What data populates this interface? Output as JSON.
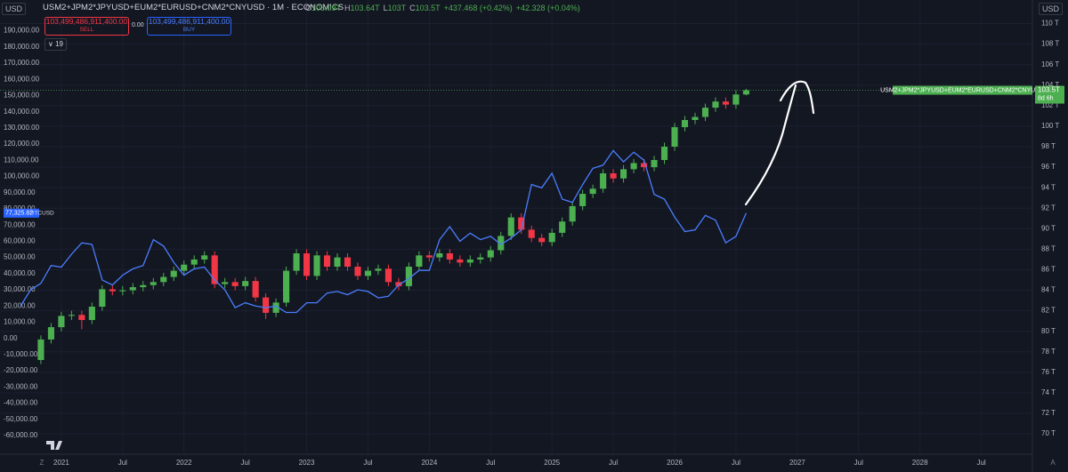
{
  "currency": "USD",
  "trade_panel": {
    "sell_price": "103,499,486,911,400.00",
    "sell": "SELL",
    "spread": "0.00",
    "buy_price": "103,499,486,911,400.00",
    "buy": "BUY",
    "indicator_count": "19"
  },
  "footer": {
    "left": "Z",
    "right": "A"
  },
  "chart_data": {
    "type": "candlestick",
    "title": "USM2+JPM2*JPYUSD+EUM2*EURUSD+CNM2*CNYUSD · 1M · ECONOMICS",
    "ohlc_legend": [
      {
        "key": "O",
        "label": "103.09T"
      },
      {
        "key": "H",
        "label": "103.64T"
      },
      {
        "key": "L",
        "label": "103T"
      },
      {
        "key": "C",
        "label": "103.5T"
      }
    ],
    "change": "+437.468 (+0.42%)",
    "change2": "+42.328 (+0.04%)",
    "xlim": [
      "2020-07",
      "2028-12"
    ],
    "xticks": [
      {
        "value": "2021-01",
        "label": "2021"
      },
      {
        "value": "2021-07",
        "label": "Jul"
      },
      {
        "value": "2022-01",
        "label": "2022"
      },
      {
        "value": "2022-07",
        "label": "Jul"
      },
      {
        "value": "2023-01",
        "label": "2023"
      },
      {
        "value": "2023-07",
        "label": "Jul"
      },
      {
        "value": "2024-01",
        "label": "2024"
      },
      {
        "value": "2024-07",
        "label": "Jul"
      },
      {
        "value": "2025-01",
        "label": "2025"
      },
      {
        "value": "2025-07",
        "label": "Jul"
      },
      {
        "value": "2026-01",
        "label": "2026"
      },
      {
        "value": "2026-07",
        "label": "Jul"
      },
      {
        "value": "2027-01",
        "label": "2027"
      },
      {
        "value": "2027-07",
        "label": "Jul"
      },
      {
        "value": "2028-01",
        "label": "2028"
      },
      {
        "value": "2028-07",
        "label": "Jul"
      }
    ],
    "ylim": [
      -71000,
      209000
    ],
    "yticks": [
      {
        "value": 190000,
        "label": "190,000.00"
      },
      {
        "value": 180000,
        "label": "180,000.00"
      },
      {
        "value": 170000,
        "label": "170,000.00"
      },
      {
        "value": 160000,
        "label": "160,000.00"
      },
      {
        "value": 150000,
        "label": "150,000.00"
      },
      {
        "value": 140000,
        "label": "140,000.00"
      },
      {
        "value": 130000,
        "label": "130,000.00"
      },
      {
        "value": 120000,
        "label": "120,000.00"
      },
      {
        "value": 110000,
        "label": "110,000.00"
      },
      {
        "value": 100000,
        "label": "100,000.00"
      },
      {
        "value": 90000,
        "label": "90,000.00"
      },
      {
        "value": 80000,
        "label": "80,000.00"
      },
      {
        "value": 70000,
        "label": "70,000.00"
      },
      {
        "value": 60000,
        "label": "60,000.00"
      },
      {
        "value": 50000,
        "label": "50,000.00"
      },
      {
        "value": 40000,
        "label": "40,000.00"
      },
      {
        "value": 30000,
        "label": "30,000.00"
      },
      {
        "value": 20000,
        "label": "20,000.00"
      },
      {
        "value": 10000,
        "label": "10,000.00"
      },
      {
        "value": 0,
        "label": "0.00"
      },
      {
        "value": -10000,
        "label": "-10,000.00"
      },
      {
        "value": -20000,
        "label": "-20,000.00"
      },
      {
        "value": -30000,
        "label": "-30,000.00"
      },
      {
        "value": -40000,
        "label": "-40,000.00"
      },
      {
        "value": -50000,
        "label": "-50,000.00"
      },
      {
        "value": -60000,
        "label": "-60,000.00"
      }
    ],
    "y2lim": [
      68.1,
      112.3
    ],
    "y2ticks": [
      {
        "value": 110,
        "label": "110 T"
      },
      {
        "value": 108,
        "label": "108 T"
      },
      {
        "value": 106,
        "label": "106 T"
      },
      {
        "value": 104,
        "label": "104 T"
      },
      {
        "value": 102,
        "label": "102 T"
      },
      {
        "value": 100,
        "label": "100 T"
      },
      {
        "value": 98,
        "label": "98 T"
      },
      {
        "value": 96,
        "label": "96 T"
      },
      {
        "value": 94,
        "label": "94 T"
      },
      {
        "value": 92,
        "label": "92 T"
      },
      {
        "value": 90,
        "label": "90 T"
      },
      {
        "value": 88,
        "label": "88 T"
      },
      {
        "value": 86,
        "label": "86 T"
      },
      {
        "value": 84,
        "label": "84 T"
      },
      {
        "value": 82,
        "label": "82 T"
      },
      {
        "value": 80,
        "label": "80 T"
      },
      {
        "value": 78,
        "label": "78 T"
      },
      {
        "value": 76,
        "label": "76 T"
      },
      {
        "value": 74,
        "label": "74 T"
      },
      {
        "value": 72,
        "label": "72 T"
      },
      {
        "value": 70,
        "label": "70 T"
      }
    ],
    "grid": true,
    "series": [
      {
        "name": "USM2+JPM2*JPYUSD+EUM2*EURUSD+CNM2*CNYUSD",
        "type": "candlestick",
        "axis": "y2",
        "up_color": "#4caf50",
        "down_color": "#f23645",
        "last_label": "103.5T",
        "countdown": "8d 6h",
        "x": [
          "2020-11",
          "2020-12",
          "2021-01",
          "2021-02",
          "2021-03",
          "2021-04",
          "2021-05",
          "2021-06",
          "2021-07",
          "2021-08",
          "2021-09",
          "2021-10",
          "2021-11",
          "2021-12",
          "2022-01",
          "2022-02",
          "2022-03",
          "2022-04",
          "2022-05",
          "2022-06",
          "2022-07",
          "2022-08",
          "2022-09",
          "2022-10",
          "2022-11",
          "2022-12",
          "2023-01",
          "2023-02",
          "2023-03",
          "2023-04",
          "2023-05",
          "2023-06",
          "2023-07",
          "2023-08",
          "2023-09",
          "2023-10",
          "2023-11",
          "2023-12",
          "2024-01",
          "2024-02",
          "2024-03",
          "2024-04",
          "2024-05",
          "2024-06",
          "2024-07",
          "2024-08",
          "2024-09",
          "2024-10",
          "2024-11",
          "2024-12",
          "2025-01",
          "2025-02",
          "2025-03",
          "2025-04",
          "2025-05",
          "2025-06",
          "2025-07",
          "2025-08",
          "2025-09",
          "2025-10",
          "2025-11",
          "2025-12",
          "2026-01",
          "2026-02",
          "2026-03",
          "2026-04",
          "2026-05",
          "2026-06",
          "2026-07",
          "2026-08"
        ],
        "open": [
          77.2,
          79.2,
          80.4,
          81.5,
          81.6,
          81.1,
          82.4,
          84.1,
          83.9,
          84.0,
          84.3,
          84.5,
          84.8,
          85.3,
          85.9,
          86.5,
          87.0,
          87.4,
          84.6,
          84.8,
          84.4,
          84.9,
          83.3,
          81.8,
          82.8,
          85.9,
          87.6,
          85.4,
          87.4,
          86.3,
          87.2,
          86.3,
          85.4,
          85.9,
          86.1,
          84.8,
          84.4,
          86.3,
          87.4,
          87.2,
          87.6,
          87.0,
          86.7,
          87.0,
          87.2,
          87.9,
          89.3,
          91.1,
          89.9,
          89.1,
          88.7,
          89.6,
          90.7,
          92.2,
          93.4,
          93.9,
          95.4,
          94.9,
          95.8,
          96.4,
          96.0,
          96.7,
          98.0,
          99.9,
          100.6,
          100.9,
          101.8,
          102.4,
          102.1,
          103.09
        ],
        "high": [
          79.6,
          80.8,
          81.9,
          82.0,
          82.0,
          82.8,
          84.5,
          84.5,
          84.4,
          84.7,
          84.9,
          85.2,
          85.7,
          86.3,
          86.9,
          87.4,
          87.8,
          87.8,
          85.2,
          85.2,
          85.3,
          85.3,
          83.7,
          83.2,
          86.3,
          88.0,
          88.0,
          87.8,
          87.8,
          87.6,
          87.6,
          86.7,
          86.3,
          86.5,
          86.5,
          85.2,
          86.7,
          87.8,
          87.8,
          88.0,
          88.0,
          87.4,
          87.4,
          87.6,
          88.3,
          89.7,
          91.5,
          91.5,
          90.3,
          89.5,
          90.0,
          91.1,
          92.6,
          93.8,
          94.3,
          95.8,
          95.8,
          96.2,
          96.8,
          96.8,
          97.1,
          98.4,
          100.3,
          101.0,
          101.3,
          102.2,
          102.8,
          102.8,
          103.5,
          103.64
        ],
        "low": [
          76.8,
          78.8,
          80.0,
          81.1,
          80.2,
          80.7,
          82.0,
          83.5,
          83.5,
          83.6,
          83.9,
          84.1,
          84.4,
          84.9,
          85.5,
          86.1,
          86.6,
          84.2,
          84.2,
          84.0,
          84.0,
          82.9,
          81.2,
          81.4,
          82.4,
          85.5,
          85.0,
          85.0,
          85.9,
          85.9,
          85.9,
          85.0,
          85.0,
          85.5,
          84.4,
          84.0,
          84.0,
          85.9,
          86.8,
          86.8,
          86.6,
          86.3,
          86.3,
          86.6,
          86.8,
          87.5,
          88.9,
          89.5,
          88.7,
          88.3,
          88.3,
          89.2,
          90.3,
          91.8,
          93.0,
          93.5,
          94.5,
          94.5,
          95.4,
          95.6,
          95.6,
          96.3,
          97.6,
          99.5,
          100.2,
          100.5,
          101.4,
          101.7,
          101.7,
          103.0
        ],
        "close": [
          79.2,
          80.4,
          81.5,
          81.6,
          81.1,
          82.4,
          84.1,
          83.9,
          84.0,
          84.3,
          84.5,
          84.8,
          85.3,
          85.9,
          86.5,
          87.0,
          87.4,
          84.6,
          84.8,
          84.4,
          84.9,
          83.3,
          81.8,
          82.8,
          85.9,
          87.6,
          85.4,
          87.4,
          86.3,
          87.2,
          86.3,
          85.4,
          85.9,
          86.1,
          84.8,
          84.4,
          86.3,
          87.4,
          87.2,
          87.6,
          87.0,
          86.7,
          87.0,
          87.2,
          87.9,
          89.3,
          91.1,
          89.9,
          89.1,
          88.7,
          89.6,
          90.7,
          92.2,
          93.4,
          93.9,
          95.4,
          94.9,
          95.8,
          96.4,
          96.0,
          96.7,
          98.0,
          99.9,
          100.6,
          100.9,
          101.8,
          102.4,
          102.1,
          103.09,
          103.5
        ]
      },
      {
        "name": "BTCUSD",
        "type": "line",
        "axis": "y",
        "color": "#4a7dff",
        "last_label": "77,325.82",
        "x": [
          "2020-09",
          "2020-10",
          "2020-11",
          "2020-12",
          "2021-01",
          "2021-02",
          "2021-03",
          "2021-04",
          "2021-05",
          "2021-06",
          "2021-07",
          "2021-08",
          "2021-09",
          "2021-10",
          "2021-11",
          "2021-12",
          "2022-01",
          "2022-02",
          "2022-03",
          "2022-04",
          "2022-05",
          "2022-06",
          "2022-07",
          "2022-08",
          "2022-09",
          "2022-10",
          "2022-11",
          "2022-12",
          "2023-01",
          "2023-02",
          "2023-03",
          "2023-04",
          "2023-05",
          "2023-06",
          "2023-07",
          "2023-08",
          "2023-09",
          "2023-10",
          "2023-11",
          "2023-12",
          "2024-01",
          "2024-02",
          "2024-03",
          "2024-04",
          "2024-05",
          "2024-06",
          "2024-07",
          "2024-08",
          "2024-09",
          "2024-10",
          "2024-11",
          "2024-12",
          "2025-01",
          "2025-02",
          "2025-03",
          "2025-04",
          "2025-05",
          "2025-06",
          "2025-07",
          "2025-08",
          "2025-09",
          "2025-10",
          "2025-11",
          "2025-12",
          "2026-01",
          "2026-02",
          "2026-03",
          "2026-04",
          "2026-05",
          "2026-06",
          "2026-07",
          "2026-08"
        ],
        "values": [
          20000,
          30000,
          34000,
          45000,
          44000,
          52000,
          59000,
          58000,
          36000,
          33000,
          39000,
          43000,
          45000,
          61000,
          57000,
          47000,
          39000,
          43000,
          44000,
          36000,
          30000,
          19000,
          22000,
          20000,
          19000,
          20000,
          16000,
          16000,
          22000,
          22000,
          28000,
          29000,
          27000,
          30000,
          29000,
          25000,
          26000,
          33000,
          37000,
          42000,
          42000,
          61000,
          69000,
          60000,
          65000,
          61000,
          63000,
          58000,
          62000,
          67000,
          95000,
          93000,
          102000,
          86000,
          84000,
          95000,
          105000,
          107000,
          116000,
          109000,
          115000,
          110000,
          89000,
          86000,
          75000,
          66000,
          67000,
          76000,
          73000,
          59000,
          63000,
          77325.82
        ]
      }
    ]
  }
}
